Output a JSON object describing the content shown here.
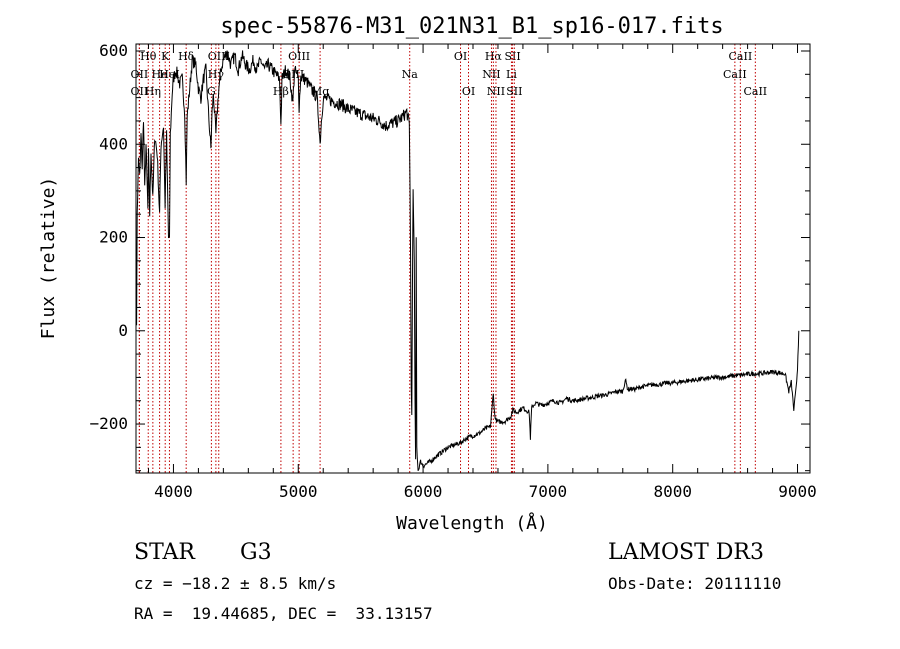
{
  "chart_data": {
    "type": "line",
    "title": "spec-55876-M31_021N31_B1_sp16-017.fits",
    "xlabel": "Wavelength (Å)",
    "ylabel": "Flux (relative)",
    "xlim": [
      3700,
      9100
    ],
    "ylim": [
      -305,
      615
    ],
    "xticks": [
      4000,
      5000,
      6000,
      7000,
      8000,
      9000
    ],
    "yticks": [
      -200,
      0,
      200,
      400,
      600
    ],
    "series": [
      {
        "name": "flux",
        "color": "#000000",
        "points": [
          [
            3700,
            150
          ],
          [
            3705,
            0
          ],
          [
            3710,
            260
          ],
          [
            3720,
            370
          ],
          [
            3730,
            330
          ],
          [
            3740,
            420
          ],
          [
            3750,
            350
          ],
          [
            3760,
            460
          ],
          [
            3770,
            300
          ],
          [
            3780,
            400
          ],
          [
            3795,
            260
          ],
          [
            3800,
            380
          ],
          [
            3810,
            250
          ],
          [
            3820,
            390
          ],
          [
            3835,
            280
          ],
          [
            3850,
            420
          ],
          [
            3870,
            380
          ],
          [
            3889,
            250
          ],
          [
            3900,
            400
          ],
          [
            3920,
            440
          ],
          [
            3933,
            270
          ],
          [
            3945,
            420
          ],
          [
            3960,
            200
          ],
          [
            3968,
            190
          ],
          [
            3975,
            420
          ],
          [
            3990,
            510
          ],
          [
            4000,
            540
          ],
          [
            4020,
            560
          ],
          [
            4050,
            530
          ],
          [
            4070,
            540
          ],
          [
            4090,
            470
          ],
          [
            4102,
            320
          ],
          [
            4110,
            460
          ],
          [
            4130,
            520
          ],
          [
            4150,
            580
          ],
          [
            4180,
            570
          ],
          [
            4200,
            520
          ],
          [
            4220,
            500
          ],
          [
            4240,
            540
          ],
          [
            4260,
            560
          ],
          [
            4280,
            470
          ],
          [
            4300,
            390
          ],
          [
            4310,
            470
          ],
          [
            4320,
            510
          ],
          [
            4340,
            420
          ],
          [
            4360,
            510
          ],
          [
            4380,
            560
          ],
          [
            4400,
            580
          ],
          [
            4430,
            600
          ],
          [
            4460,
            570
          ],
          [
            4490,
            590
          ],
          [
            4520,
            560
          ],
          [
            4550,
            590
          ],
          [
            4580,
            570
          ],
          [
            4610,
            560
          ],
          [
            4640,
            580
          ],
          [
            4670,
            560
          ],
          [
            4700,
            580
          ],
          [
            4730,
            560
          ],
          [
            4760,
            570
          ],
          [
            4790,
            560
          ],
          [
            4820,
            550
          ],
          [
            4850,
            540
          ],
          [
            4861,
            440
          ],
          [
            4870,
            540
          ],
          [
            4900,
            560
          ],
          [
            4930,
            545
          ],
          [
            4957,
            490
          ],
          [
            4970,
            560
          ],
          [
            5000,
            540
          ],
          [
            5007,
            480
          ],
          [
            5020,
            545
          ],
          [
            5050,
            540
          ],
          [
            5080,
            530
          ],
          [
            5100,
            520
          ],
          [
            5130,
            510
          ],
          [
            5150,
            500
          ],
          [
            5167,
            440
          ],
          [
            5175,
            400
          ],
          [
            5185,
            450
          ],
          [
            5200,
            500
          ],
          [
            5250,
            495
          ],
          [
            5300,
            490
          ],
          [
            5350,
            485
          ],
          [
            5400,
            475
          ],
          [
            5450,
            470
          ],
          [
            5500,
            465
          ],
          [
            5550,
            460
          ],
          [
            5600,
            455
          ],
          [
            5650,
            450
          ],
          [
            5700,
            440
          ],
          [
            5750,
            445
          ],
          [
            5800,
            450
          ],
          [
            5840,
            460
          ],
          [
            5870,
            470
          ],
          [
            5890,
            440
          ],
          [
            5896,
            300
          ],
          [
            5900,
            150
          ],
          [
            5905,
            -120
          ],
          [
            5910,
            -180
          ],
          [
            5915,
            120
          ],
          [
            5920,
            300
          ],
          [
            5930,
            150
          ],
          [
            5935,
            -150
          ],
          [
            5940,
            -280
          ],
          [
            5945,
            200
          ],
          [
            5950,
            -250
          ],
          [
            5960,
            -300
          ],
          [
            5980,
            -280
          ],
          [
            6000,
            -290
          ],
          [
            6030,
            -285
          ],
          [
            6060,
            -280
          ],
          [
            6100,
            -270
          ],
          [
            6150,
            -260
          ],
          [
            6200,
            -250
          ],
          [
            6250,
            -245
          ],
          [
            6300,
            -240
          ],
          [
            6350,
            -230
          ],
          [
            6400,
            -225
          ],
          [
            6450,
            -220
          ],
          [
            6500,
            -210
          ],
          [
            6540,
            -205
          ],
          [
            6555,
            -160
          ],
          [
            6563,
            -130
          ],
          [
            6570,
            -170
          ],
          [
            6580,
            -190
          ],
          [
            6600,
            -195
          ],
          [
            6650,
            -195
          ],
          [
            6700,
            -185
          ],
          [
            6720,
            -170
          ],
          [
            6750,
            -175
          ],
          [
            6800,
            -165
          ],
          [
            6850,
            -175
          ],
          [
            6860,
            -230
          ],
          [
            6870,
            -165
          ],
          [
            6900,
            -155
          ],
          [
            6950,
            -160
          ],
          [
            7000,
            -155
          ],
          [
            7050,
            -150
          ],
          [
            7100,
            -155
          ],
          [
            7150,
            -145
          ],
          [
            7200,
            -150
          ],
          [
            7250,
            -148
          ],
          [
            7300,
            -145
          ],
          [
            7350,
            -143
          ],
          [
            7400,
            -140
          ],
          [
            7450,
            -138
          ],
          [
            7500,
            -135
          ],
          [
            7550,
            -130
          ],
          [
            7600,
            -130
          ],
          [
            7620,
            -105
          ],
          [
            7640,
            -125
          ],
          [
            7700,
            -125
          ],
          [
            7750,
            -120
          ],
          [
            7800,
            -118
          ],
          [
            7850,
            -115
          ],
          [
            7900,
            -115
          ],
          [
            7950,
            -112
          ],
          [
            8000,
            -112
          ],
          [
            8050,
            -110
          ],
          [
            8100,
            -108
          ],
          [
            8150,
            -106
          ],
          [
            8200,
            -105
          ],
          [
            8250,
            -103
          ],
          [
            8300,
            -102
          ],
          [
            8350,
            -100
          ],
          [
            8400,
            -100
          ],
          [
            8450,
            -98
          ],
          [
            8500,
            -96
          ],
          [
            8550,
            -95
          ],
          [
            8600,
            -93
          ],
          [
            8650,
            -92
          ],
          [
            8700,
            -92
          ],
          [
            8750,
            -90
          ],
          [
            8800,
            -88
          ],
          [
            8850,
            -90
          ],
          [
            8900,
            -92
          ],
          [
            8930,
            -130
          ],
          [
            8950,
            -110
          ],
          [
            8970,
            -170
          ],
          [
            8990,
            -120
          ],
          [
            9000,
            -80
          ],
          [
            9010,
            0
          ]
        ]
      }
    ],
    "lines": [
      {
        "label": "Hθ",
        "wavelength": 3798,
        "row": 0
      },
      {
        "label": "OII",
        "wavelength": 3727,
        "row": 1
      },
      {
        "label": "OII",
        "wavelength": 3727,
        "row": 2
      },
      {
        "label": "He",
        "wavelength": 3889,
        "row": 1
      },
      {
        "label": "Hη",
        "wavelength": 3835,
        "row": 2
      },
      {
        "label": "K",
        "wavelength": 3934,
        "row": 0
      },
      {
        "label": "HeI",
        "wavelength": 3968,
        "row": 1
      },
      {
        "label": "Hδ",
        "wavelength": 4102,
        "row": 0
      },
      {
        "label": "OIII",
        "wavelength": 4363,
        "row": 0
      },
      {
        "label": "Hγ",
        "wavelength": 4340,
        "row": 1
      },
      {
        "label": "G",
        "wavelength": 4304,
        "row": 2
      },
      {
        "label": "OIII",
        "wavelength": 5007,
        "row": 0
      },
      {
        "label": "OIII",
        "wavelength": 4959,
        "row": 1
      },
      {
        "label": "Hβ",
        "wavelength": 4861,
        "row": 2
      },
      {
        "label": "Mg",
        "wavelength": 5175,
        "row": 2
      },
      {
        "label": "Na",
        "wavelength": 5893,
        "row": 1
      },
      {
        "label": "OI",
        "wavelength": 6300,
        "row": 0
      },
      {
        "label": "OI",
        "wavelength": 6364,
        "row": 2
      },
      {
        "label": "Hα",
        "wavelength": 6563,
        "row": 0
      },
      {
        "label": "NII",
        "wavelength": 6548,
        "row": 1
      },
      {
        "label": "NII",
        "wavelength": 6584,
        "row": 2
      },
      {
        "label": "SII",
        "wavelength": 6717,
        "row": 0
      },
      {
        "label": "Li",
        "wavelength": 6708,
        "row": 1
      },
      {
        "label": "SII",
        "wavelength": 6731,
        "row": 2
      },
      {
        "label": "CaII",
        "wavelength": 8542,
        "row": 0
      },
      {
        "label": "CaII",
        "wavelength": 8498,
        "row": 1
      },
      {
        "label": "CaII",
        "wavelength": 8662,
        "row": 2
      }
    ]
  },
  "info": {
    "class": "STAR",
    "subclass": "G3",
    "survey": "LAMOST DR3",
    "cz": "cz = −18.2 ± 8.5 km/s",
    "obs_date": "Obs-Date: 20111110",
    "coords": "RA =  19.44685, DEC =  33.13157"
  },
  "colors": {
    "line_marker": "#c00000",
    "spectrum": "#000000"
  }
}
